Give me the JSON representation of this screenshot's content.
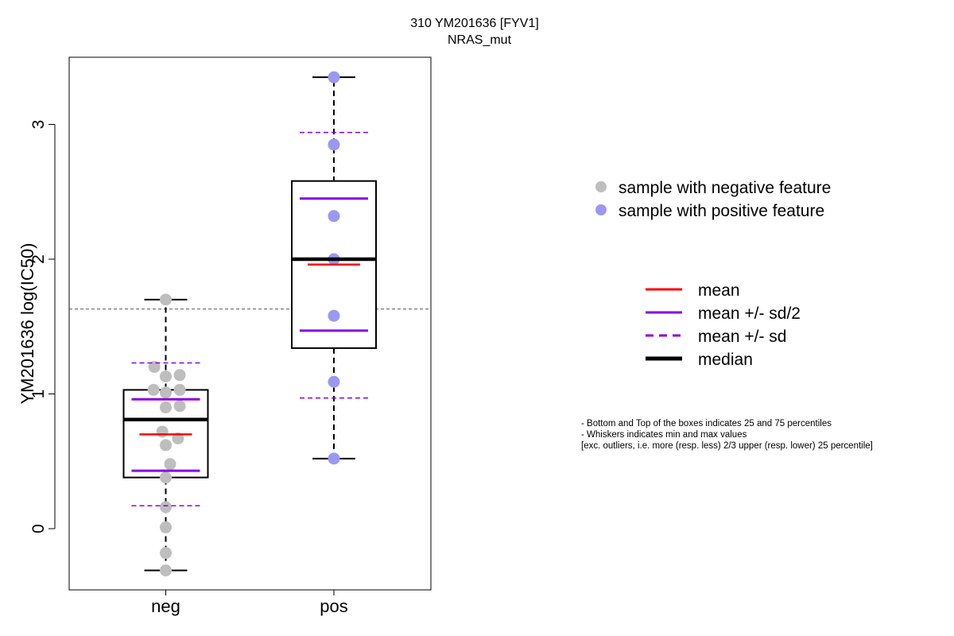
{
  "chart_data": {
    "type": "boxplot",
    "title": "310 YM201636 [FYV1]",
    "subtitle": "NRAS_mut",
    "ylabel": "YM201636 log(IC50)",
    "xlabel": "",
    "ylim": [
      -0.45,
      3.5
    ],
    "yticks": [
      0,
      1,
      2,
      3
    ],
    "reference_line": 1.63,
    "categories": [
      "neg",
      "pos"
    ],
    "groups": [
      {
        "category": "neg",
        "color": "#bebebe",
        "whisker_low": -0.31,
        "q1": 0.38,
        "median": 0.81,
        "q3": 1.03,
        "whisker_high": 1.7,
        "mean": 0.7,
        "mean_minus_half_sd": 0.43,
        "mean_plus_half_sd": 0.96,
        "mean_minus_sd": 0.17,
        "mean_plus_sd": 1.23,
        "points": [
          {
            "dx": 0.0,
            "y": 1.7
          },
          {
            "dx": -0.13,
            "y": 1.2
          },
          {
            "dx": 0.0,
            "y": 1.13
          },
          {
            "dx": 0.16,
            "y": 1.14
          },
          {
            "dx": -0.14,
            "y": 1.03
          },
          {
            "dx": 0.0,
            "y": 1.01
          },
          {
            "dx": 0.16,
            "y": 1.03
          },
          {
            "dx": 0.0,
            "y": 0.9
          },
          {
            "dx": 0.16,
            "y": 0.91
          },
          {
            "dx": -0.04,
            "y": 0.72
          },
          {
            "dx": 0.14,
            "y": 0.67
          },
          {
            "dx": 0.0,
            "y": 0.62
          },
          {
            "dx": 0.05,
            "y": 0.48
          },
          {
            "dx": 0.0,
            "y": 0.38
          },
          {
            "dx": 0.0,
            "y": 0.16
          },
          {
            "dx": 0.0,
            "y": 0.01
          },
          {
            "dx": 0.0,
            "y": -0.18
          },
          {
            "dx": 0.0,
            "y": -0.31
          }
        ]
      },
      {
        "category": "pos",
        "color": "#9999f2",
        "whisker_low": 0.52,
        "q1": 1.34,
        "median": 2.0,
        "q3": 2.58,
        "whisker_high": 3.35,
        "mean": 1.96,
        "mean_minus_half_sd": 1.47,
        "mean_plus_half_sd": 2.45,
        "mean_minus_sd": 0.97,
        "mean_plus_sd": 2.94,
        "points": [
          {
            "dx": 0.0,
            "y": 3.35
          },
          {
            "dx": 0.0,
            "y": 2.85
          },
          {
            "dx": 0.0,
            "y": 2.32
          },
          {
            "dx": 0.0,
            "y": 2.0
          },
          {
            "dx": 0.0,
            "y": 1.58
          },
          {
            "dx": 0.0,
            "y": 1.09
          },
          {
            "dx": 0.0,
            "y": 0.52
          }
        ]
      }
    ],
    "legend_points": [
      {
        "label": "sample with negative feature",
        "color": "#bebebe"
      },
      {
        "label": "sample with positive feature",
        "color": "#9999f2"
      }
    ],
    "legend_lines": [
      {
        "label": "mean",
        "color": "#ff0000",
        "style": "solid"
      },
      {
        "label": "mean +/- sd/2",
        "color": "#8b00e6",
        "style": "solid"
      },
      {
        "label": "mean +/- sd",
        "color": "#8b00e6",
        "style": "dashed"
      },
      {
        "label": "median",
        "color": "#000000",
        "style": "thick"
      }
    ],
    "notes": [
      "- Bottom and Top of the boxes indicates 25 and 75 percentiles",
      "- Whiskers indicates min and max values",
      "[exc. outliers, i.e. more (resp. less) 2/3 upper (resp. lower) 25 percentile]"
    ]
  }
}
